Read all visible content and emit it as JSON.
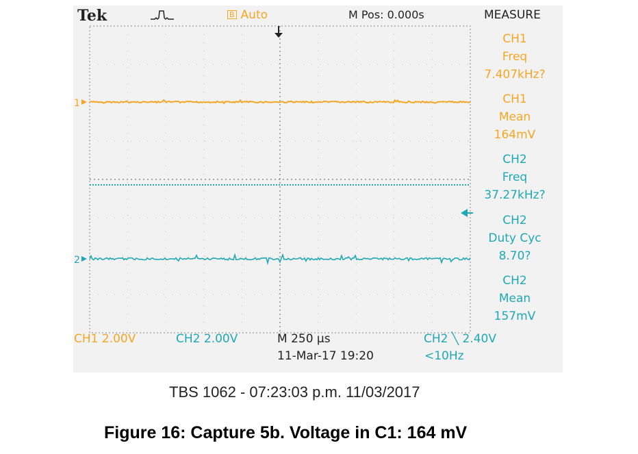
{
  "colors": {
    "ch1": "#f5a623",
    "ch2": "#1ea8b5",
    "text": "#222222",
    "panel": "#f2f2f2"
  },
  "scope": {
    "brand": "Tek",
    "trigger_icon": "trigger-waveform-icon",
    "acquisition": {
      "box_label": "B",
      "mode": "Auto"
    },
    "m_pos": "M Pos: 0.000s",
    "measure": {
      "title": "MEASURE",
      "items": [
        {
          "channel": "CH1",
          "name": "Freq",
          "value": "7.407kHz?"
        },
        {
          "channel": "CH1",
          "name": "Mean",
          "value": "164mV"
        },
        {
          "channel": "CH2",
          "name": "Freq",
          "value": "37.27kHz?"
        },
        {
          "channel": "CH2",
          "name": "Duty Cyc",
          "value": "8.70?"
        },
        {
          "channel": "CH2",
          "name": "Mean",
          "value": "157mV"
        }
      ]
    },
    "markers": {
      "ch1": "1",
      "ch2": "2"
    },
    "status": {
      "ch1_scale": "CH1  2.00V",
      "ch2_scale": "CH2  2.00V",
      "timebase": "M 250 µs",
      "datetime": "11-Mar-17 19:20",
      "trigger_level": "CH2 ╲ 2.40V",
      "trigger_freq": "<10Hz"
    }
  },
  "footer": "TBS 1062 - 07:23:03 p.m.    11/03/2017",
  "caption": "Figure 16: Capture 5b. Voltage in C1: 164 mV"
}
